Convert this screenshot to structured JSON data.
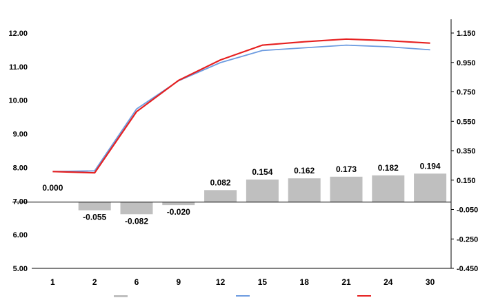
{
  "chart_data": {
    "type": "bar+line",
    "title": "",
    "categories": [
      "1",
      "2",
      "6",
      "9",
      "12",
      "15",
      "18",
      "21",
      "24",
      "30"
    ],
    "bar_series": {
      "name": "",
      "axis": "right",
      "values": [
        0.0,
        -0.055,
        -0.082,
        -0.02,
        0.082,
        0.154,
        0.162,
        0.173,
        0.182,
        0.194
      ],
      "labels": [
        "0.000",
        "-0.055",
        "-0.082",
        "-0.020",
        "0.082",
        "0.154",
        "0.162",
        "0.173",
        "0.182",
        "0.194"
      ],
      "color": "#bfbfbf"
    },
    "line_series": [
      {
        "name": "",
        "axis": "left",
        "values": [
          7.88,
          7.9,
          9.74,
          10.58,
          11.12,
          11.48,
          11.56,
          11.64,
          11.59,
          11.5
        ],
        "color": "#6c9be0"
      },
      {
        "name": "",
        "axis": "left",
        "values": [
          7.88,
          7.84,
          9.66,
          10.59,
          11.2,
          11.64,
          11.74,
          11.82,
          11.77,
          11.7
        ],
        "color": "#e62020"
      }
    ],
    "y_left": {
      "ylim": [
        5.0,
        12.0
      ],
      "ticks": [
        "5.00",
        "6.00",
        "7.00",
        "8.00",
        "9.00",
        "10.00",
        "11.00",
        "12.00"
      ]
    },
    "y_right": {
      "ylim": [
        -0.45,
        1.15
      ],
      "ticks": [
        "-0.450",
        "-0.250",
        "-0.050",
        "0.150",
        "0.350",
        "0.550",
        "0.750",
        "0.950",
        "1.150"
      ]
    },
    "legend": {
      "placement": "bottom"
    },
    "grid": false
  }
}
